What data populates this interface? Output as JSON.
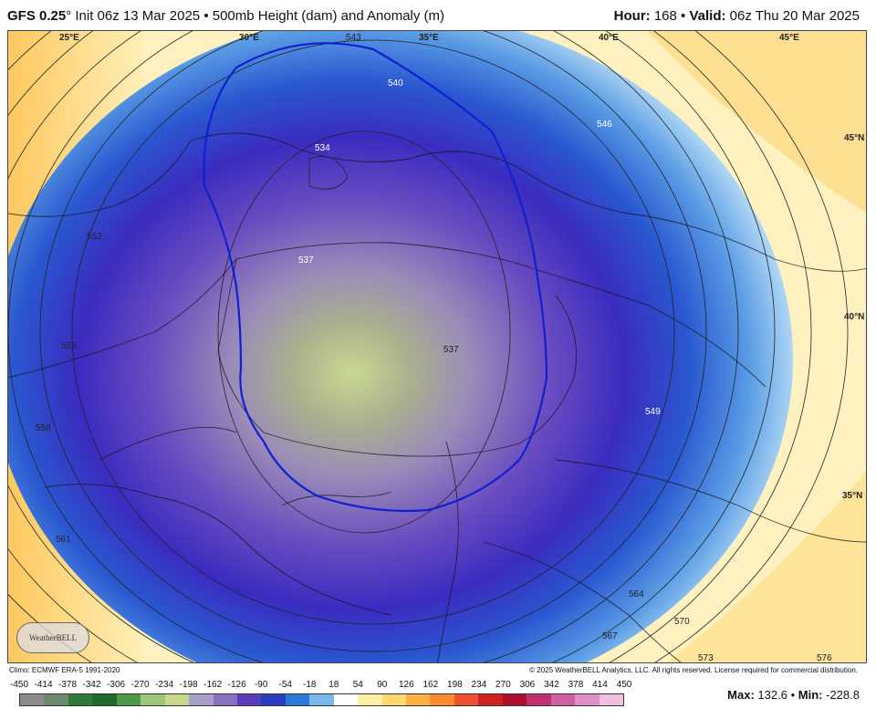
{
  "header": {
    "model": "GFS 0.25",
    "degree": "°",
    "init": "Init 06z 13 Mar 2025",
    "bullet": "•",
    "product": "500mb Height (dam) and Anomaly (m)",
    "hour_label": "Hour:",
    "hour_value": "168",
    "valid_label": "Valid:",
    "valid_value": "06z Thu 20 Mar 2025"
  },
  "map": {
    "lon_labels": [
      "25°E",
      "30°E",
      "35°E",
      "40°E",
      "45°E"
    ],
    "lat_labels": [
      "45°N",
      "40°N",
      "35°N"
    ],
    "contours": [
      "534",
      "537",
      "537",
      "540",
      "543",
      "546",
      "549",
      "552",
      "555",
      "558",
      "561",
      "564",
      "567",
      "570",
      "573",
      "576"
    ],
    "highlight_contour_color": "#1020d0",
    "logo_text": "WeatherBELL"
  },
  "footer": {
    "climo": "Climo: ECMWF ERA-5 1991-2020",
    "copyright": "© 2025 WeatherBELL Analytics, LLC. All rights reserved. License required for commercial distribution."
  },
  "colorbar": {
    "ticks": [
      "-450",
      "-414",
      "-378",
      "-342",
      "-306",
      "-270",
      "-234",
      "-198",
      "-162",
      "-126",
      "-90",
      "-54",
      "-18",
      "18",
      "54",
      "90",
      "126",
      "162",
      "198",
      "234",
      "270",
      "306",
      "342",
      "378",
      "414",
      "450"
    ],
    "colors": [
      "#8c8c8c",
      "#6e8a6e",
      "#2f7a3a",
      "#1f6a2a",
      "#4f9a4a",
      "#9ec67a",
      "#c6d88c",
      "#a8a0c8",
      "#8a70c0",
      "#5a3cb8",
      "#2a3cc0",
      "#2a78d8",
      "#7ab8ec",
      "#ffffff",
      "#fff0a8",
      "#ffd870",
      "#ffb040",
      "#ff8a30",
      "#f05030",
      "#d02020",
      "#b01030",
      "#c03070",
      "#d060a0",
      "#e090c8",
      "#f0c0e0"
    ]
  },
  "stats": {
    "max_label": "Max:",
    "max_value": "132.6",
    "min_label": "Min:",
    "min_value": "-228.8",
    "bullet": "•"
  }
}
